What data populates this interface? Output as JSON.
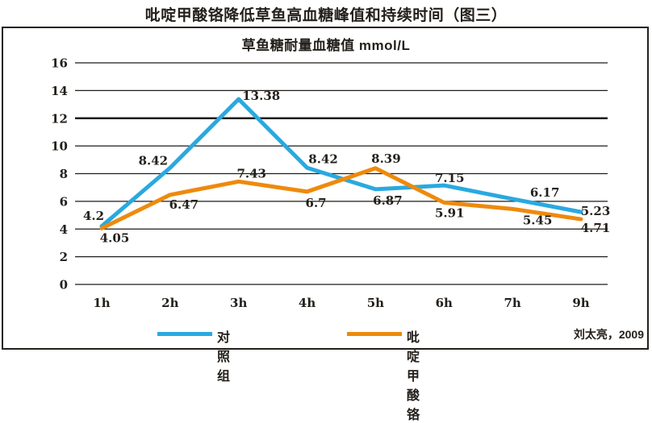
{
  "main_title": "吡啶甲酸铬降低草鱼高血糖峰值和持续时间（图三）",
  "attribution": "刘太亮，2009",
  "chart_data": {
    "type": "line",
    "title": "草鱼糖耐量血糖值 mmol/L",
    "categories": [
      "1h",
      "2h",
      "3h",
      "4h",
      "5h",
      "6h",
      "7h",
      "9h"
    ],
    "series": [
      {
        "name": "对照组",
        "color": "#29A9E0",
        "values": [
          4.2,
          8.42,
          13.38,
          8.42,
          6.87,
          7.15,
          6.17,
          5.23
        ],
        "labels": [
          "4.2",
          "8.42",
          "13.38",
          "8.42",
          "6.87",
          "7.15",
          "6.17",
          "5.23"
        ]
      },
      {
        "name": "吡啶甲酸铬",
        "color": "#EE8A0C",
        "values": [
          4.05,
          6.47,
          7.43,
          6.7,
          8.39,
          5.91,
          5.45,
          4.71
        ],
        "labels": [
          "4.05",
          "6.47",
          "7.43",
          "6.7",
          "8.39",
          "5.91",
          "5.45",
          "4.71"
        ]
      }
    ],
    "xlabel": "",
    "ylabel": "",
    "ylim": [
      0,
      16
    ],
    "ytick_step": 2,
    "yticks": [
      "0",
      "2",
      "4",
      "6",
      "8",
      "10",
      "12",
      "14",
      "16"
    ],
    "grid": "horizontal",
    "grid_color": "#1f1b18",
    "data_labels": true,
    "legend_position": "bottom",
    "text_color": "#231f1a"
  }
}
